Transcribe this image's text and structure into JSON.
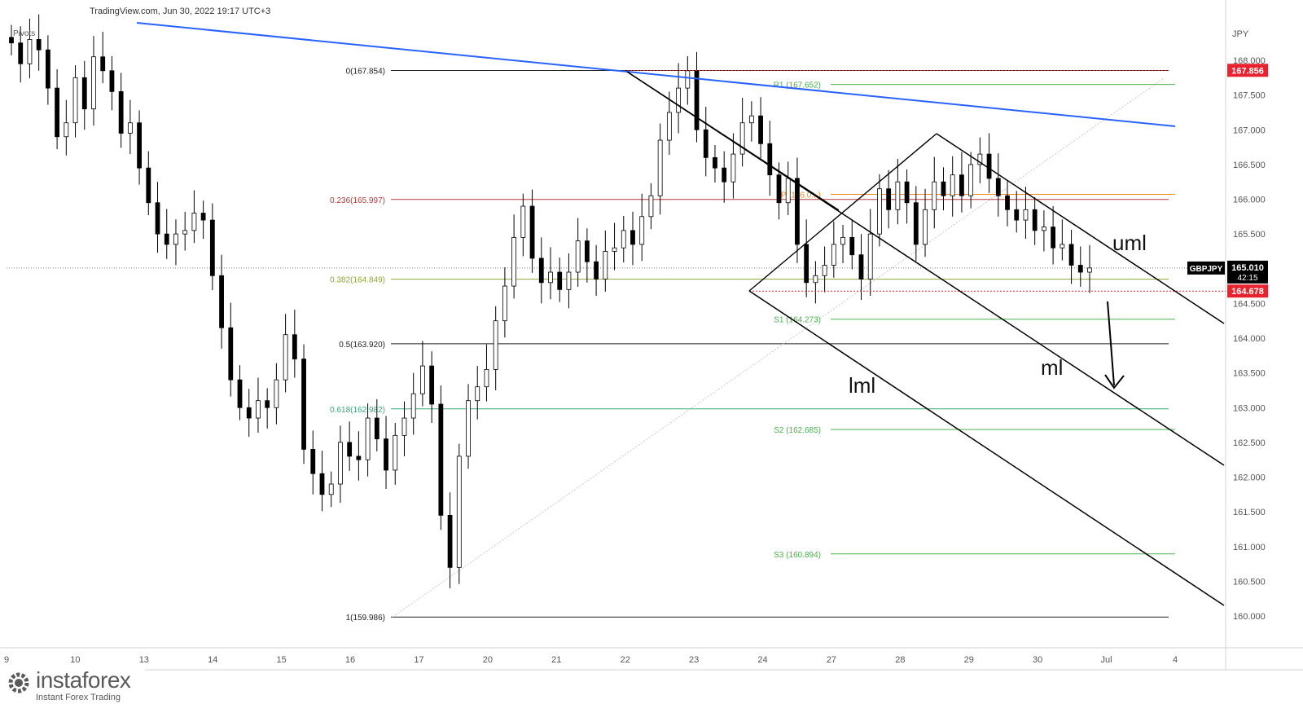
{
  "header": {
    "source_line": "TradingView.com, Jun 30, 2022 19:17 UTC+3",
    "pivots_label": "Pivots"
  },
  "logo": {
    "name": "instaforex",
    "tagline": "Instant Forex Trading"
  },
  "chart_data": {
    "type": "candlestick",
    "symbol": "GBPJPY",
    "currency": "JPY",
    "y_axis": {
      "ticks": [
        "168.000",
        "167.500",
        "167.000",
        "166.500",
        "166.000",
        "165.500",
        "164.500",
        "164.000",
        "163.500",
        "163.000",
        "162.500",
        "162.000",
        "161.500",
        "161.000",
        "160.500",
        "160.000"
      ],
      "range": [
        159.8,
        168.5
      ]
    },
    "x_axis": {
      "ticks": [
        "9",
        "10",
        "13",
        "14",
        "15",
        "16",
        "17",
        "20",
        "21",
        "22",
        "23",
        "24",
        "27",
        "28",
        "29",
        "30",
        "Jul",
        "4"
      ]
    },
    "last_price": {
      "symbol": "GBPJPY",
      "value": "165.010",
      "countdown": "42:15",
      "y": 165.01
    },
    "price_labels": [
      {
        "text": "167.856",
        "y": 167.856,
        "color": "#e8232f"
      },
      {
        "text": "164.678",
        "y": 164.678,
        "color": "#e8232f"
      }
    ],
    "fibonacci": [
      {
        "label": "0(167.854)",
        "y": 167.854,
        "color": "#222222"
      },
      {
        "label": "0.236(165.997)",
        "y": 165.997,
        "color": "#b23a3a"
      },
      {
        "label": "0.382(164.849)",
        "y": 164.849,
        "color": "#8aa83a"
      },
      {
        "label": "0.5(163.920)",
        "y": 163.92,
        "color": "#222222"
      },
      {
        "label": "0.618(162.982)",
        "y": 162.982,
        "color": "#3aa87a"
      },
      {
        "label": "1(159.986)",
        "y": 159.986,
        "color": "#222222"
      }
    ],
    "pivots": [
      {
        "label": "R1 (167.652)",
        "y": 167.652,
        "color": "#4caf50"
      },
      {
        "label": "P (166.0...)",
        "y": 166.07,
        "color": "#ef8a1b"
      },
      {
        "label": "S1 (164.273)",
        "y": 164.273,
        "color": "#4caf50"
      },
      {
        "label": "S2 (162.685)",
        "y": 162.685,
        "color": "#4caf50"
      },
      {
        "label": "S3 (160.894)",
        "y": 160.894,
        "color": "#4caf50"
      }
    ],
    "annotations": {
      "uml": "uml",
      "ml": "ml",
      "lml": "lml"
    },
    "colors": {
      "up": "#ffffff",
      "down": "#000000",
      "trendline": "#2962ff",
      "fork": "#000000",
      "price_tag": "#e8232f",
      "symbol_tag": "#000000"
    },
    "closes": [
      168.25,
      167.95,
      168.3,
      168.15,
      167.6,
      166.9,
      167.1,
      167.75,
      167.3,
      168.05,
      167.85,
      167.55,
      166.95,
      167.1,
      166.45,
      165.95,
      165.5,
      165.35,
      165.5,
      165.55,
      165.8,
      165.7,
      164.9,
      164.15,
      163.4,
      163.0,
      162.85,
      163.1,
      163.0,
      163.4,
      164.05,
      163.7,
      162.4,
      162.05,
      161.75,
      161.9,
      162.5,
      162.3,
      162.25,
      162.85,
      162.55,
      162.1,
      162.6,
      162.85,
      163.2,
      163.6,
      163.05,
      161.45,
      160.7,
      162.3,
      163.1,
      163.3,
      163.55,
      164.25,
      164.75,
      165.45,
      165.9,
      165.15,
      164.8,
      164.95,
      164.7,
      164.95,
      165.4,
      165.1,
      164.85,
      165.25,
      165.3,
      165.55,
      165.35,
      165.75,
      166.05,
      166.85,
      167.25,
      167.6,
      167.85,
      167.0,
      166.6,
      166.45,
      166.25,
      166.65,
      167.1,
      167.2,
      166.8,
      166.35,
      165.95,
      166.3,
      165.35,
      164.8,
      164.9,
      165.05,
      165.35,
      165.45,
      165.2,
      164.85,
      165.5,
      166.15,
      165.85,
      166.25,
      165.95,
      165.35,
      165.85,
      166.25,
      166.05,
      166.35,
      166.05,
      166.5,
      166.65,
      166.3,
      166.05,
      165.85,
      165.7,
      165.85,
      165.55,
      165.6,
      165.3,
      165.35,
      165.05,
      164.95,
      165.01
    ]
  }
}
